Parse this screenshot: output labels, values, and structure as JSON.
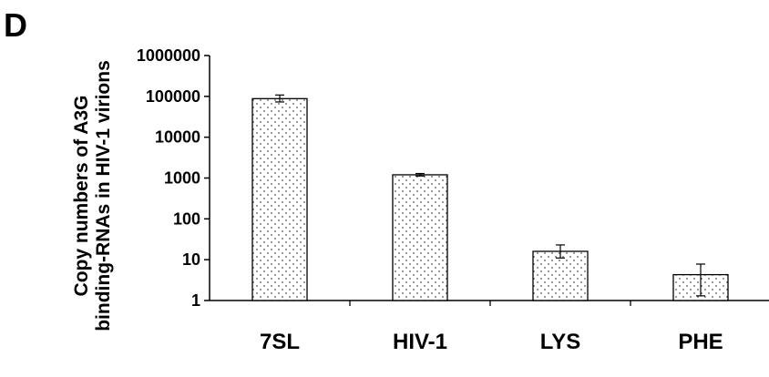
{
  "panel_label": "D",
  "chart_data": {
    "type": "bar",
    "title": "",
    "xlabel": "",
    "ylabel_lines": [
      "Copy numbers of A3G",
      "binding-RNAs in HIV-1 virions"
    ],
    "yscale": "log",
    "ylim": [
      1,
      1000000
    ],
    "yticks": [
      "1",
      "10",
      "100",
      "1000",
      "10000",
      "100000",
      "1000000"
    ],
    "categories": [
      "7SL",
      "HIV-1",
      "LYS",
      "PHE"
    ],
    "values": [
      88000,
      1200,
      16,
      4.3
    ],
    "error_low": [
      73000,
      1120,
      11,
      1.3
    ],
    "error_high": [
      108000,
      1290,
      23,
      7.8
    ],
    "bar_fill": "stippled",
    "grid": false,
    "legend": "none"
  }
}
